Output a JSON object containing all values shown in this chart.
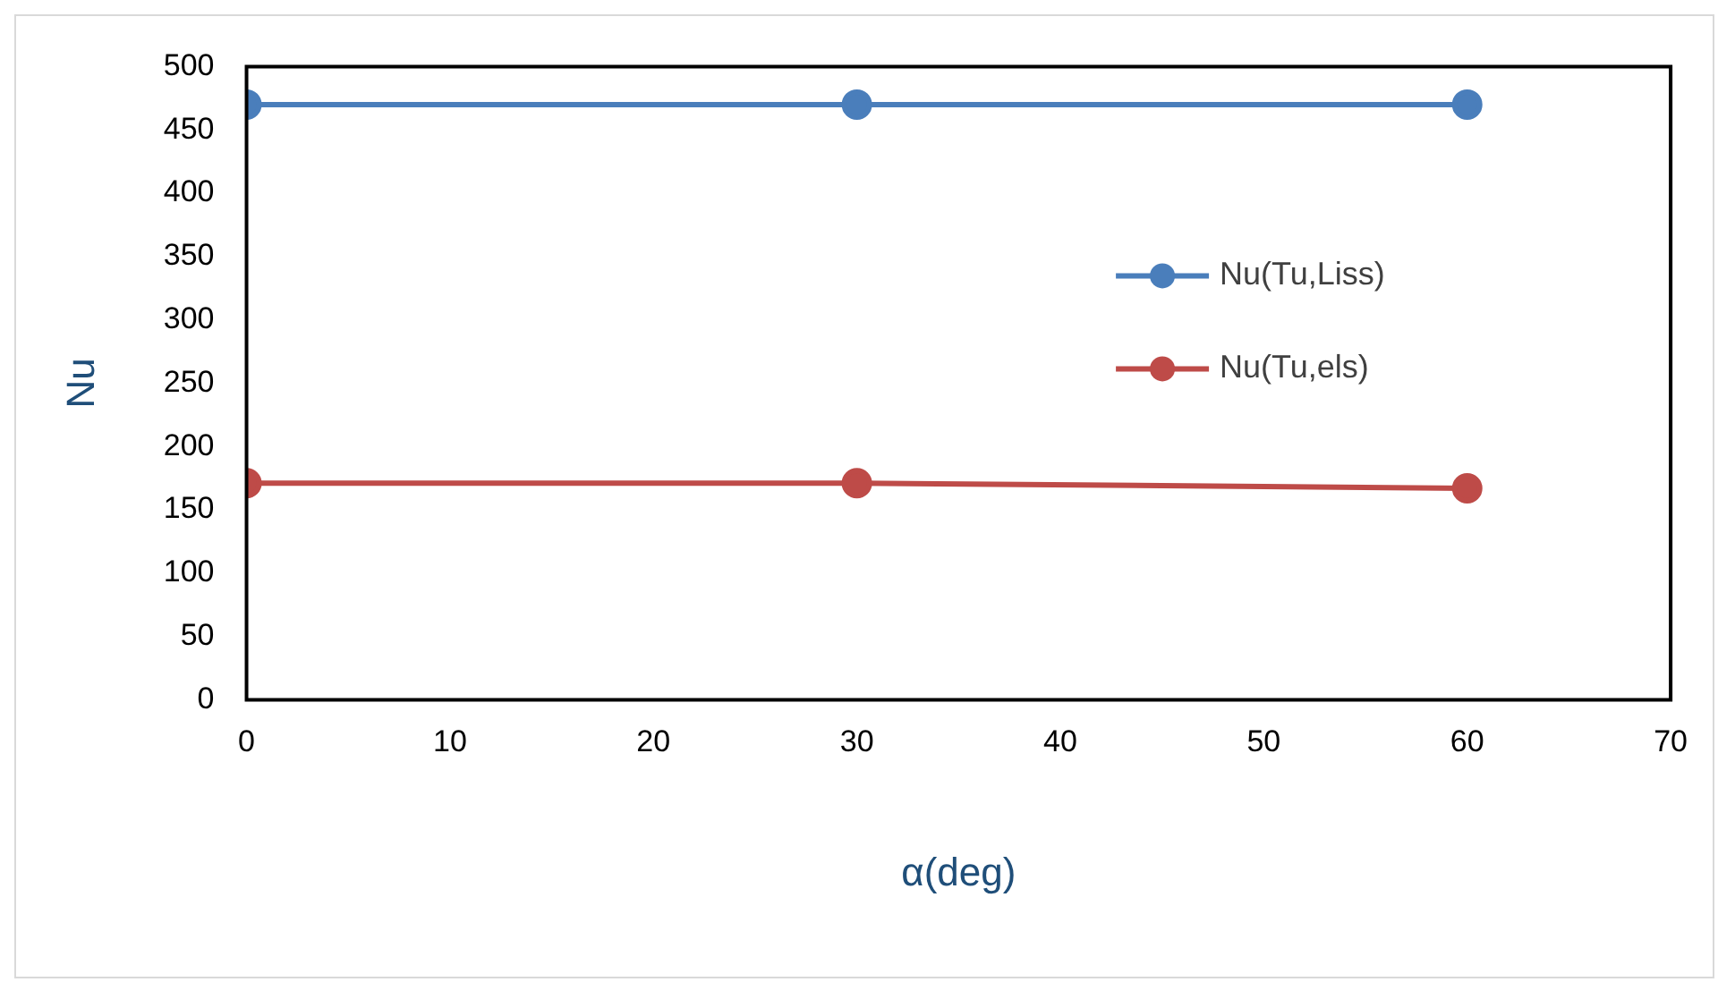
{
  "chart_data": {
    "type": "line",
    "xlabel": "α(deg)",
    "ylabel": "Nu",
    "x": [
      0,
      30,
      60
    ],
    "series": [
      {
        "name": "Nu(Tu,Liss)",
        "color": "#4a7ebb",
        "values": [
          470,
          470,
          470
        ]
      },
      {
        "name": "Nu(Tu,els)",
        "color": "#be4b48",
        "values": [
          171,
          171,
          167
        ]
      }
    ],
    "xlim": [
      0,
      70
    ],
    "xticks": [
      0,
      10,
      20,
      30,
      40,
      50,
      60,
      70
    ],
    "ylim": [
      0,
      500
    ],
    "yticks": [
      0,
      50,
      100,
      150,
      200,
      250,
      300,
      350,
      400,
      450,
      500
    ],
    "grid": false,
    "legend": "right",
    "marker": "circle",
    "line_style": "solid"
  }
}
